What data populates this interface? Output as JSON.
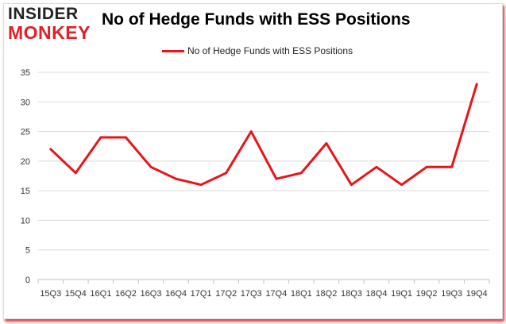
{
  "logo": {
    "top": "INSIDER",
    "bottom": "MONKEY"
  },
  "colors": {
    "line": "#e8141a",
    "grid": "#d9d9d9",
    "frame_shadow": "#e23b3b",
    "logo_red": "#e01f26"
  },
  "chart_data": {
    "type": "line",
    "title": "No of Hedge Funds with ESS Positions",
    "xlabel": "",
    "ylabel": "",
    "categories": [
      "15Q3",
      "15Q4",
      "16Q1",
      "16Q2",
      "16Q3",
      "16Q4",
      "17Q1",
      "17Q2",
      "17Q3",
      "17Q4",
      "18Q1",
      "18Q2",
      "18Q3",
      "18Q4",
      "19Q1",
      "19Q2",
      "19Q3",
      "19Q4"
    ],
    "series": [
      {
        "name": "No of Hedge Funds with ESS Positions",
        "values": [
          22,
          18,
          24,
          24,
          19,
          17,
          16,
          18,
          25,
          17,
          18,
          23,
          16,
          19,
          16,
          19,
          19,
          33
        ]
      }
    ],
    "ylim": [
      0,
      35
    ],
    "yticks": [
      0,
      5,
      10,
      15,
      20,
      25,
      30,
      35
    ],
    "grid": true,
    "legend_position": "top-center"
  }
}
